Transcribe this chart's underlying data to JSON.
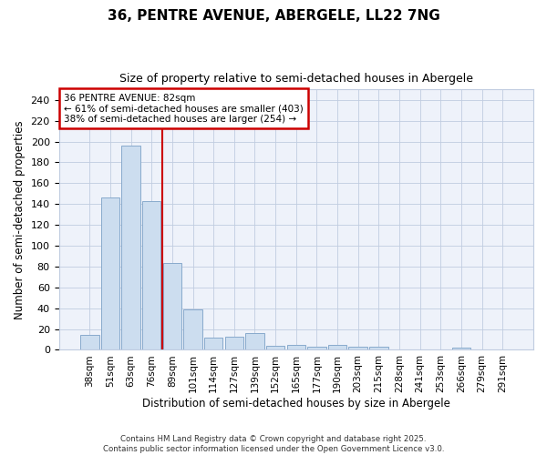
{
  "title1": "36, PENTRE AVENUE, ABERGELE, LL22 7NG",
  "title2": "Size of property relative to semi-detached houses in Abergele",
  "xlabel": "Distribution of semi-detached houses by size in Abergele",
  "ylabel": "Number of semi-detached properties",
  "categories": [
    "38sqm",
    "51sqm",
    "63sqm",
    "76sqm",
    "89sqm",
    "101sqm",
    "114sqm",
    "127sqm",
    "139sqm",
    "152sqm",
    "165sqm",
    "177sqm",
    "190sqm",
    "203sqm",
    "215sqm",
    "228sqm",
    "241sqm",
    "253sqm",
    "266sqm",
    "279sqm",
    "291sqm"
  ],
  "values": [
    14,
    146,
    196,
    143,
    83,
    39,
    12,
    13,
    16,
    4,
    5,
    3,
    5,
    3,
    3,
    0,
    0,
    0,
    2,
    0,
    0
  ],
  "bar_color": "#ccddef",
  "bar_edge_color": "#88aacc",
  "vline_x": 3.5,
  "vline_color": "#cc0000",
  "annotation_text": "36 PENTRE AVENUE: 82sqm\n← 61% of semi-detached houses are smaller (403)\n38% of semi-detached houses are larger (254) →",
  "annotation_box_facecolor": "#ffffff",
  "annotation_box_edge": "#cc0000",
  "plot_bg_color": "#eef2fa",
  "figure_bg_color": "#ffffff",
  "grid_color": "#c0cce0",
  "footer": "Contains HM Land Registry data © Crown copyright and database right 2025.\nContains public sector information licensed under the Open Government Licence v3.0.",
  "ylim": [
    0,
    250
  ],
  "yticks": [
    0,
    20,
    40,
    60,
    80,
    100,
    120,
    140,
    160,
    180,
    200,
    220,
    240
  ]
}
